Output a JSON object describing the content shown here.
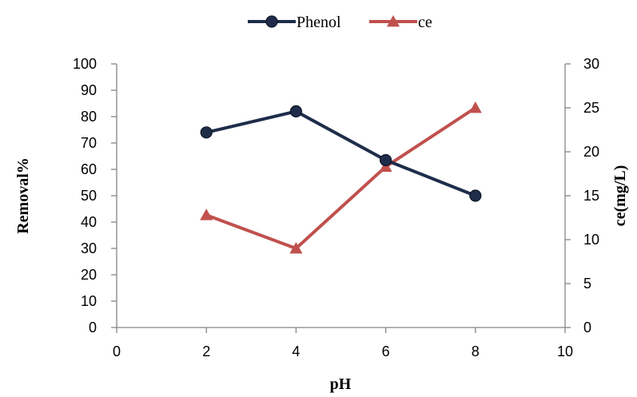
{
  "chart_data": {
    "type": "line",
    "xlabel": "pH",
    "ylabel": "Removal%",
    "y2label": "ce(mg/L)",
    "xlim": [
      0,
      10
    ],
    "ylim": [
      0,
      100
    ],
    "y2lim": [
      0,
      30
    ],
    "x_ticks": [
      "0",
      "2",
      "4",
      "6",
      "8",
      "10"
    ],
    "y_ticks": [
      "0",
      "10",
      "20",
      "30",
      "40",
      "50",
      "60",
      "70",
      "80",
      "90",
      "100"
    ],
    "y2_ticks": [
      "0",
      "5",
      "10",
      "15",
      "20",
      "25",
      "30"
    ],
    "grid": false,
    "legend_position": "top-center",
    "series": [
      {
        "name": "Phenol",
        "axis": "left",
        "color": "#1f2d4a",
        "marker": "circle",
        "x": [
          2,
          4,
          6,
          8
        ],
        "values": [
          74,
          82,
          63.5,
          50
        ]
      },
      {
        "name": "ce",
        "axis": "right",
        "color": "#c0504d",
        "marker": "triangle",
        "x": [
          2,
          4,
          6,
          8
        ],
        "values": [
          12.8,
          9,
          18.3,
          25
        ]
      }
    ]
  }
}
